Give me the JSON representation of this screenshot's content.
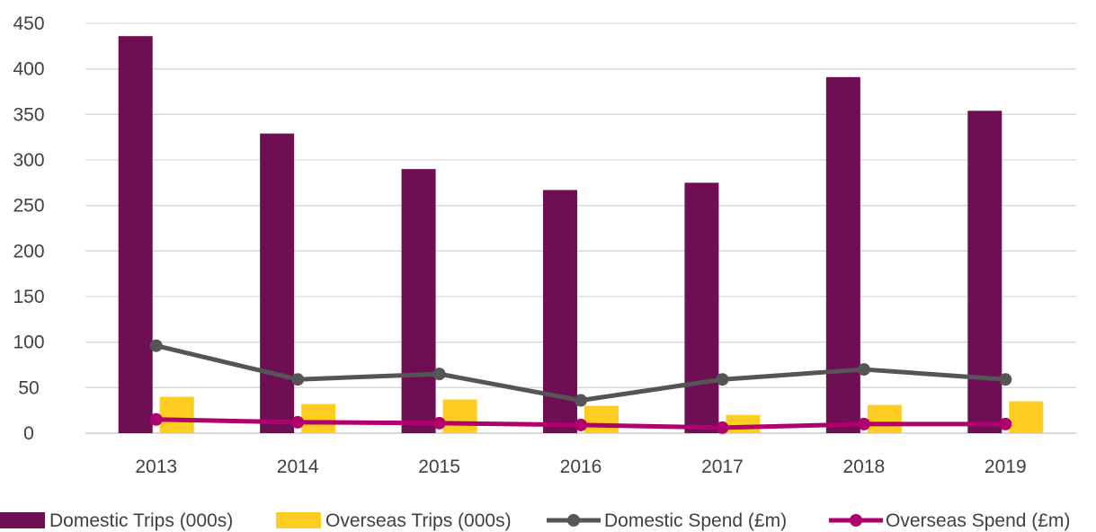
{
  "chart_data": {
    "type": "bar",
    "categories": [
      "2013",
      "2014",
      "2015",
      "2016",
      "2017",
      "2018",
      "2019"
    ],
    "ylim": [
      0,
      450
    ],
    "yticks": [
      0,
      50,
      100,
      150,
      200,
      250,
      300,
      350,
      400,
      450
    ],
    "grid": true,
    "legend_position": "bottom",
    "series": [
      {
        "name": "Domestic Trips (000s)",
        "kind": "bar",
        "color": "#6E0F54",
        "values": [
          436,
          329,
          290,
          267,
          275,
          391,
          354
        ]
      },
      {
        "name": "Overseas Trips (000s)",
        "kind": "bar",
        "color": "#FFCC22",
        "values": [
          40,
          32,
          37,
          30,
          20,
          31,
          35
        ]
      },
      {
        "name": "Domestic Spend (£m)",
        "kind": "line",
        "color": "#555555",
        "values": [
          96,
          59,
          65,
          36,
          59,
          70,
          59
        ]
      },
      {
        "name": "Overseas Spend (£m)",
        "kind": "line",
        "color": "#B0006E",
        "values": [
          15,
          12,
          11,
          9,
          6,
          10,
          10
        ]
      }
    ]
  }
}
